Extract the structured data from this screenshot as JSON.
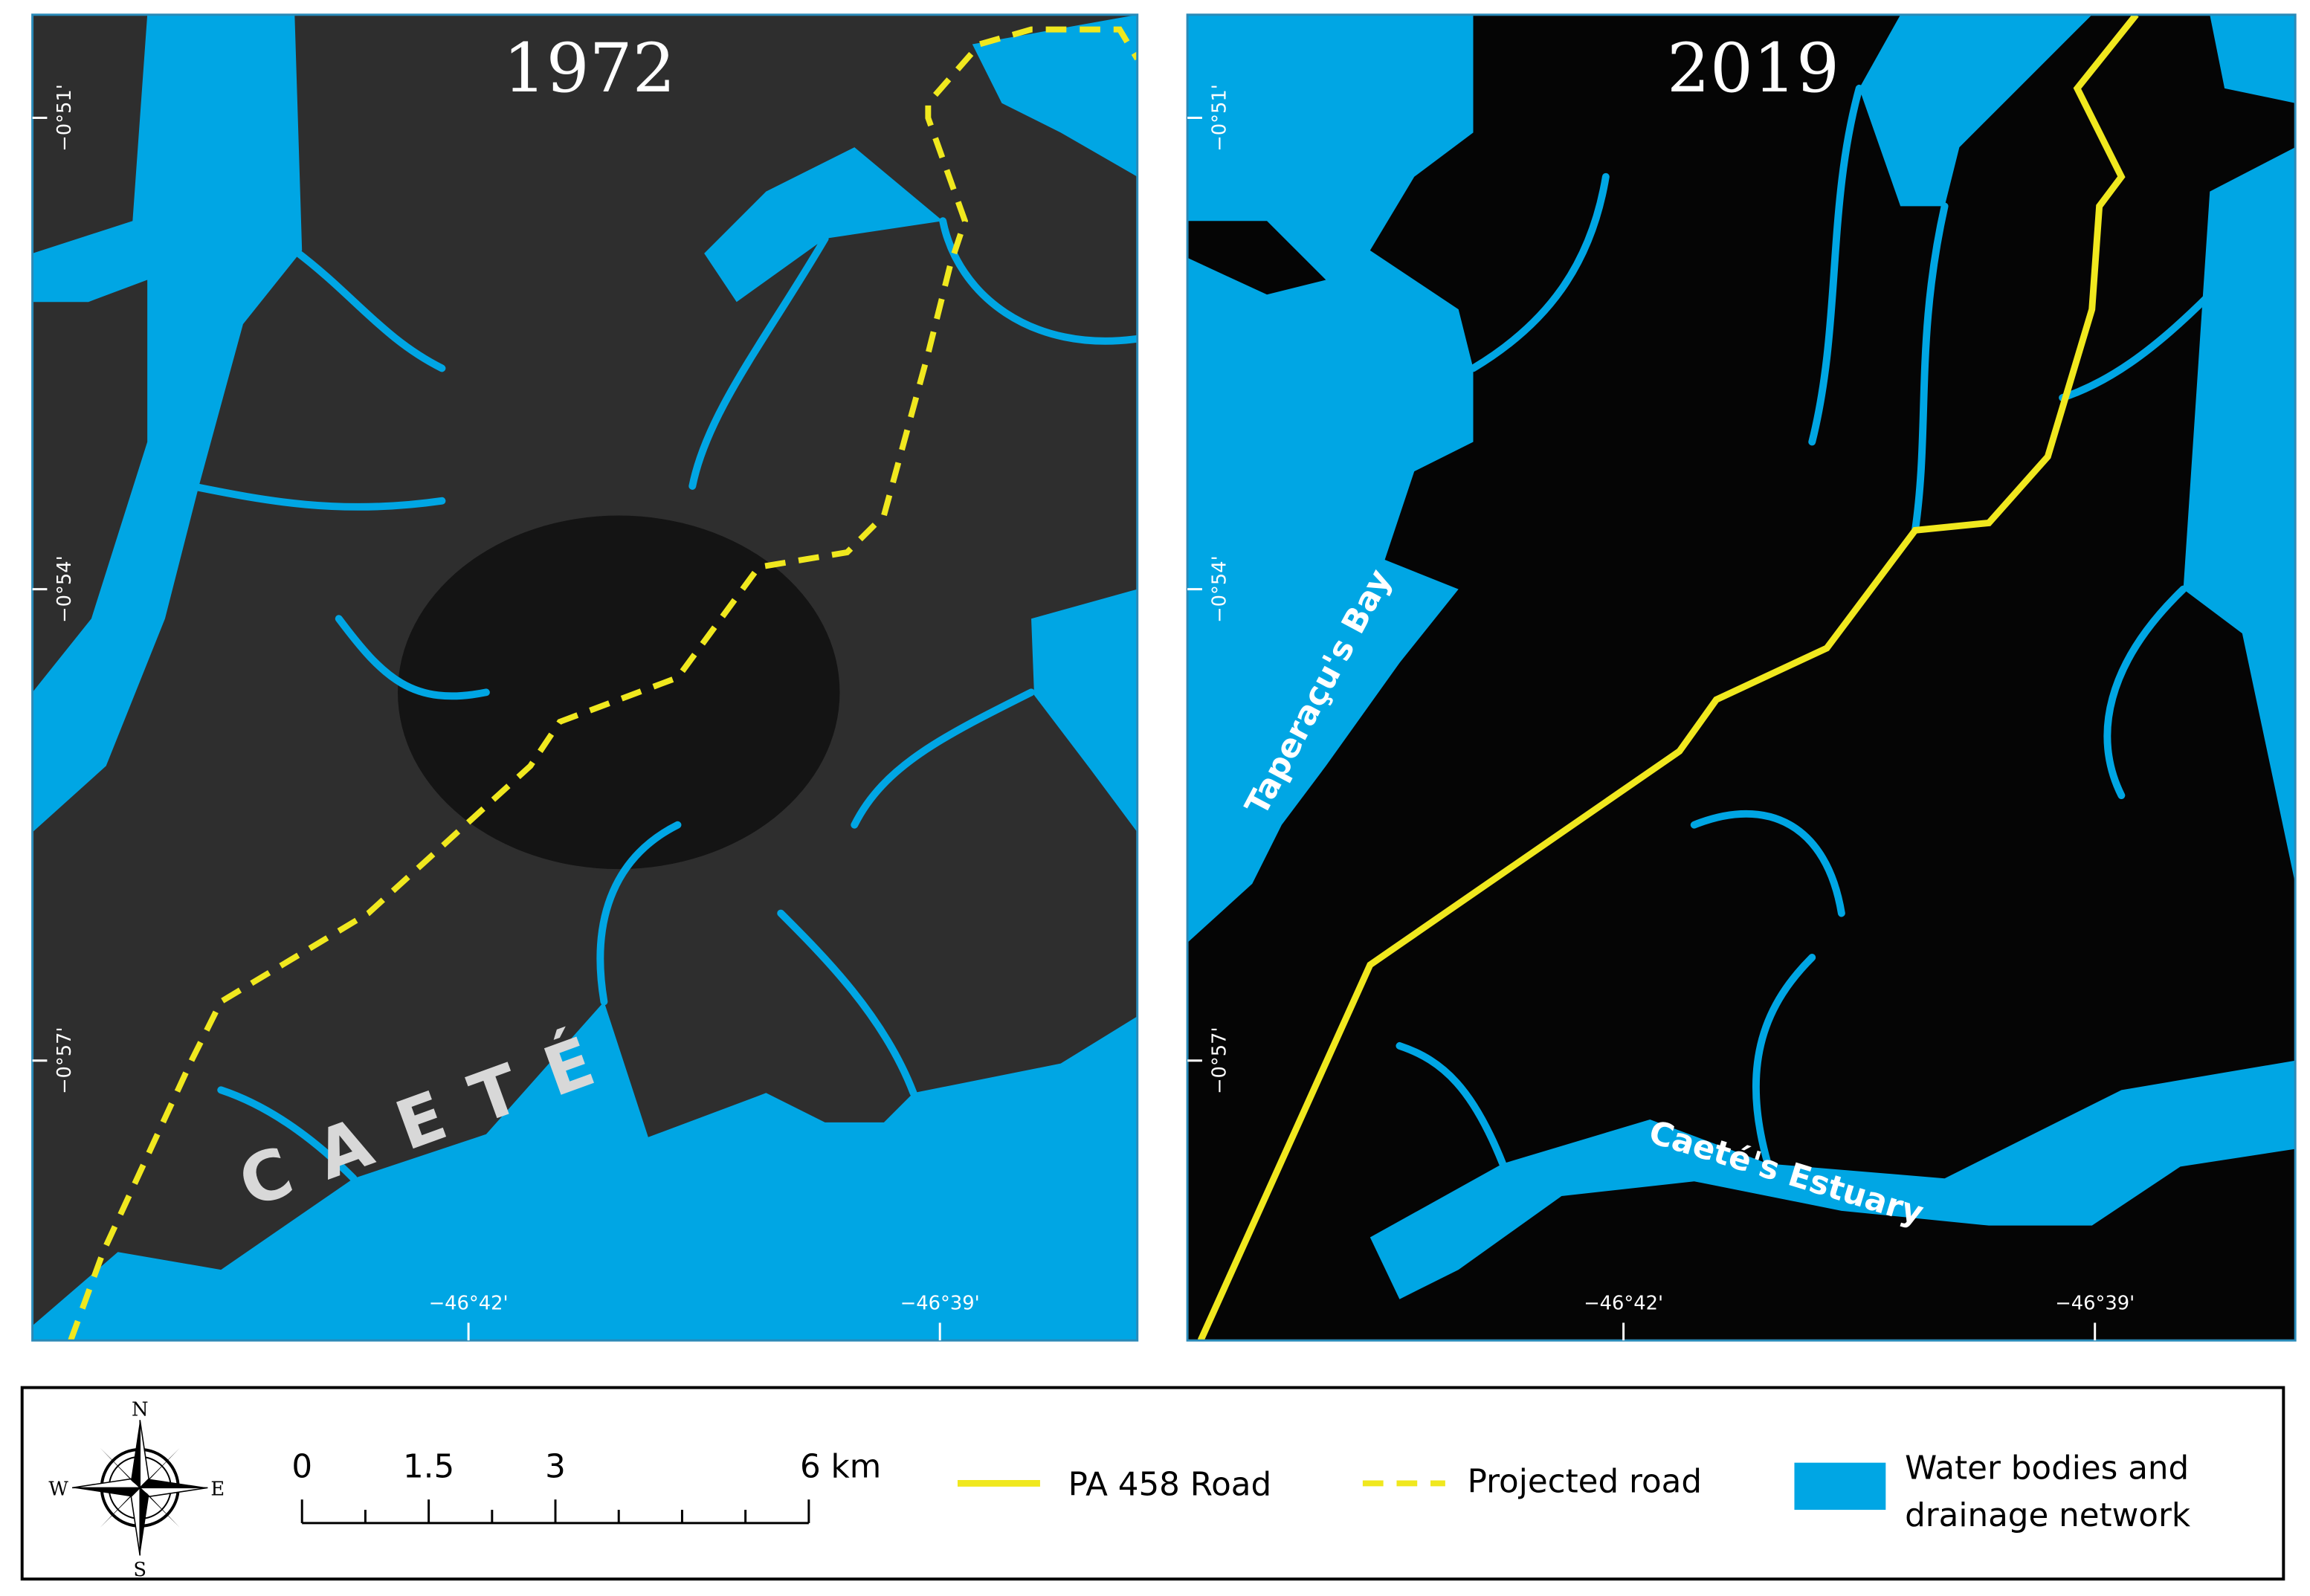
{
  "panels": [
    {
      "year": "1972",
      "lat_labels": [
        "−0°51'",
        "−0°54'",
        "−0°57'"
      ],
      "lon_labels": [
        "−46°42'",
        "−46°39'"
      ],
      "place_labels": [
        "CAETÉ"
      ]
    },
    {
      "year": "2019",
      "lat_labels": [
        "−0°51'",
        "−0°54'",
        "−0°57'"
      ],
      "lon_labels": [
        "−46°42'",
        "−46°39'"
      ],
      "place_labels": [
        "Taperaçu's Bay",
        "Caeté's Estuary"
      ]
    }
  ],
  "legend": {
    "compass": {
      "n": "N",
      "s": "S",
      "e": "E",
      "w": "W"
    },
    "scale_labels": [
      "0",
      "1.5",
      "3",
      "6 km"
    ],
    "items": [
      {
        "label": "PA 458 Road"
      },
      {
        "label": "Projected road"
      },
      {
        "label_lines": [
          "Water bodies and",
          "drainage network"
        ]
      }
    ]
  }
}
